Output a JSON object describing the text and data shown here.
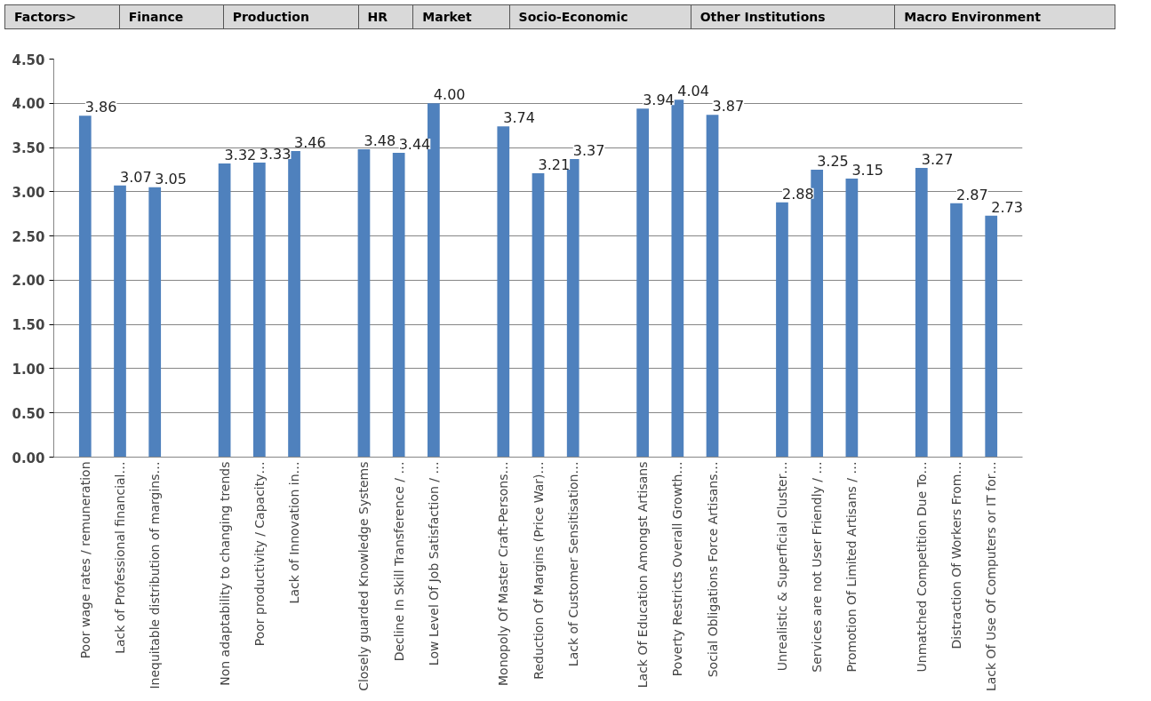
{
  "chart_data": {
    "type": "bar",
    "annotations": [
      "Factors>",
      "Finance",
      "Production",
      "HR",
      "Market",
      "Socio-Economic",
      "Other Institutions",
      "Macro Environment"
    ],
    "categories": [
      "Poor wage rates / remuneration",
      "Lack of Professional financial…",
      "Inequitable distribution of margins…",
      null,
      "Non adaptability to changing trends",
      "Poor productivity / Capacity…",
      "Lack of Innovation in…",
      null,
      "Closely guarded Knowledge Systems",
      "Decline In Skill Transference / …",
      "Low Level Of Job Satisfaction / …",
      null,
      "Monopoly Of Master Craft-Persons…",
      "Reduction Of Margins (Price War)…",
      "Lack of Customer Sensitisation…",
      null,
      "Lack Of Education Amongst Artisans",
      "Poverty Restricts Overall Growth…",
      "Social Obligations Force Artisans…",
      null,
      "Unrealistic & Superficial Cluster…",
      "Services are not User Friendly / …",
      "Promotion Of Limited Artisans / …",
      null,
      "Unmatched Competition Due To…",
      "Distraction Of Workers From…",
      "Lack Of Use Of Computers or IT for…"
    ],
    "values": [
      3.86,
      3.07,
      3.05,
      null,
      3.32,
      3.33,
      3.46,
      null,
      3.48,
      3.44,
      4.0,
      null,
      3.74,
      3.21,
      3.37,
      null,
      3.94,
      4.04,
      3.87,
      null,
      2.88,
      3.25,
      3.15,
      null,
      3.27,
      2.87,
      2.73
    ],
    "value_labels": [
      "3.86",
      "3.07",
      "3.05",
      null,
      "3.32",
      "3.33",
      "3.46",
      null,
      "3.48",
      "3.44",
      "4.00",
      null,
      "3.74",
      "3.21",
      "3.37",
      null,
      "3.94",
      "4.04",
      "3.87",
      null,
      "2.88",
      "3.25",
      "3.15",
      null,
      "3.27",
      "2.87",
      "2.73"
    ],
    "color": "#4f81bd",
    "ylim": [
      0,
      4.5
    ],
    "yticks": [
      {
        "value": 0,
        "label": "0.00"
      },
      {
        "value": 0.5,
        "label": "0.50"
      },
      {
        "value": 1,
        "label": "1.00"
      },
      {
        "value": 1.5,
        "label": "1.50"
      },
      {
        "value": 2,
        "label": "2.00"
      },
      {
        "value": 2.5,
        "label": "2.50"
      },
      {
        "value": 3,
        "label": "3.00"
      },
      {
        "value": 3.5,
        "label": "3.50"
      },
      {
        "value": 4,
        "label": "4.00"
      },
      {
        "value": 4.5,
        "label": "4.50"
      }
    ],
    "grid": "y"
  }
}
